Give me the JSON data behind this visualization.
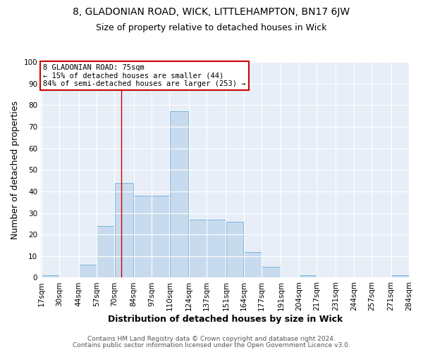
{
  "title_line1": "8, GLADONIAN ROAD, WICK, LITTLEHAMPTON, BN17 6JW",
  "title_line2": "Size of property relative to detached houses in Wick",
  "xlabel": "Distribution of detached houses by size in Wick",
  "ylabel": "Number of detached properties",
  "bar_color": "#c8daee",
  "bar_edge_color": "#6aaed6",
  "bin_edges": [
    17,
    30,
    44,
    57,
    70,
    84,
    97,
    110,
    124,
    137,
    151,
    164,
    177,
    191,
    204,
    217,
    231,
    244,
    257,
    271,
    284
  ],
  "bin_labels": [
    "17sqm",
    "30sqm",
    "44sqm",
    "57sqm",
    "70sqm",
    "84sqm",
    "97sqm",
    "110sqm",
    "124sqm",
    "137sqm",
    "151sqm",
    "164sqm",
    "177sqm",
    "191sqm",
    "204sqm",
    "217sqm",
    "231sqm",
    "244sqm",
    "257sqm",
    "271sqm",
    "284sqm"
  ],
  "counts": [
    1,
    0,
    6,
    24,
    44,
    38,
    38,
    77,
    27,
    27,
    26,
    12,
    5,
    0,
    1,
    0,
    0,
    0,
    0,
    1
  ],
  "ylim": [
    0,
    100
  ],
  "yticks": [
    0,
    10,
    20,
    30,
    40,
    50,
    60,
    70,
    80,
    90,
    100
  ],
  "vline_x": 75,
  "vline_color": "#cc0000",
  "annotation_text": "8 GLADONIAN ROAD: 75sqm\n← 15% of detached houses are smaller (44)\n84% of semi-detached houses are larger (253) →",
  "annotation_box_color": "#ffffff",
  "annotation_box_edge_color": "#cc0000",
  "footer_line1": "Contains HM Land Registry data © Crown copyright and database right 2024.",
  "footer_line2": "Contains public sector information licensed under the Open Government Licence v3.0.",
  "background_color": "#ffffff",
  "plot_bg_color": "#e8eef7",
  "grid_color": "#ffffff",
  "title_fontsize": 10,
  "subtitle_fontsize": 9,
  "axis_label_fontsize": 9,
  "tick_fontsize": 7.5,
  "footer_fontsize": 6.5
}
